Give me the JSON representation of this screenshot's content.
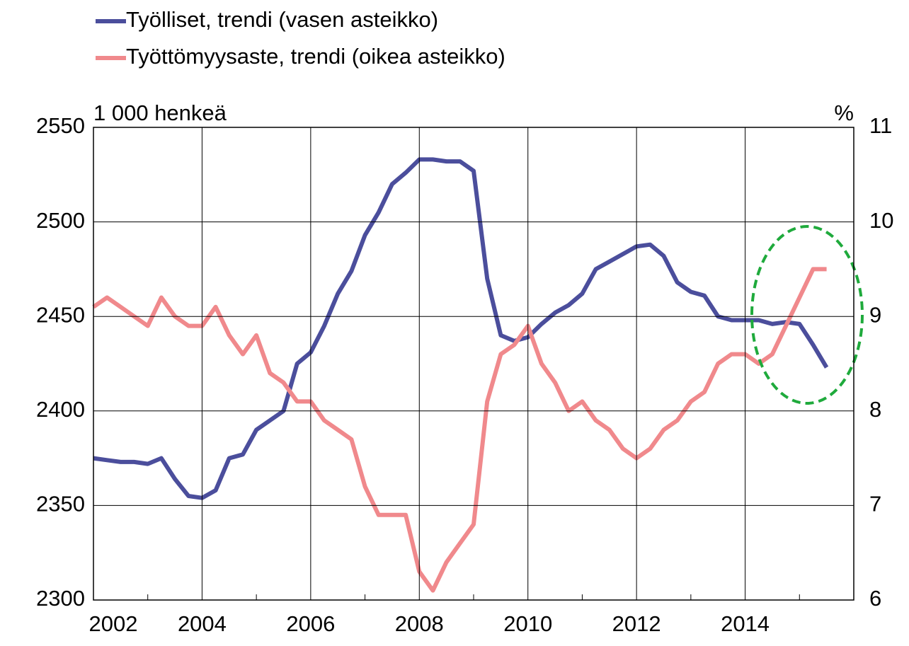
{
  "chart_data": {
    "type": "line",
    "x": [
      2002,
      2002.25,
      2002.5,
      2002.75,
      2003,
      2003.25,
      2003.5,
      2003.75,
      2004,
      2004.25,
      2004.5,
      2004.75,
      2005,
      2005.25,
      2005.5,
      2005.75,
      2006,
      2006.25,
      2006.5,
      2006.75,
      2007,
      2007.25,
      2007.5,
      2007.75,
      2008,
      2008.25,
      2008.5,
      2008.75,
      2009,
      2009.25,
      2009.5,
      2009.75,
      2010,
      2010.25,
      2010.5,
      2010.75,
      2011,
      2011.25,
      2011.5,
      2011.75,
      2012,
      2012.25,
      2012.5,
      2012.75,
      2013,
      2013.25,
      2013.5,
      2013.75,
      2014,
      2014.25,
      2014.5,
      2014.75,
      2015,
      2015.25,
      2015.5
    ],
    "series": [
      {
        "name": "Työlliset, trendi (vasen asteikko)",
        "color": "#4b4e9c",
        "axis": "y",
        "values": [
          2375,
          2374,
          2373,
          2373,
          2372,
          2375,
          2364,
          2355,
          2354,
          2358,
          2375,
          2377,
          2390,
          2395,
          2400,
          2425,
          2431,
          2445,
          2462,
          2474,
          2493,
          2505,
          2520,
          2526,
          2533,
          2533,
          2532,
          2532,
          2527,
          2470,
          2440,
          2437,
          2439,
          2446,
          2452,
          2456,
          2462,
          2475,
          2479,
          2483,
          2487,
          2488,
          2482,
          2468,
          2463,
          2461,
          2450,
          2448,
          2448,
          2448,
          2446,
          2447,
          2446,
          2435,
          2423
        ]
      },
      {
        "name": "Työttömyysaste, trendi (oikea asteikko)",
        "color": "#f0898c",
        "axis": "y2",
        "values": [
          9.1,
          9.2,
          9.1,
          9.0,
          8.9,
          9.2,
          9.0,
          8.9,
          8.9,
          9.1,
          8.8,
          8.6,
          8.8,
          8.4,
          8.3,
          8.1,
          8.1,
          7.9,
          7.8,
          7.7,
          7.2,
          6.9,
          6.9,
          6.9,
          6.3,
          6.1,
          6.4,
          6.6,
          6.8,
          8.1,
          8.6,
          8.7,
          8.9,
          8.5,
          8.3,
          8.0,
          8.1,
          7.9,
          7.8,
          7.6,
          7.5,
          7.6,
          7.8,
          7.9,
          8.1,
          8.2,
          8.5,
          8.6,
          8.6,
          8.5,
          8.6,
          8.9,
          9.2,
          9.5,
          9.5
        ]
      }
    ],
    "y_label": "1 000 henkeä",
    "y2_label": "%",
    "xlim": [
      2002,
      2016
    ],
    "xticks": [
      2002,
      2004,
      2006,
      2008,
      2010,
      2012,
      2014
    ],
    "xminorticks": [
      2003,
      2005,
      2007,
      2009,
      2011,
      2013,
      2015
    ],
    "ylim": [
      2300,
      2550
    ],
    "yticks": [
      2300,
      2350,
      2400,
      2450,
      2500,
      2550
    ],
    "y2lim": [
      6,
      11
    ],
    "y2ticks": [
      6,
      7,
      8,
      9,
      10,
      11
    ],
    "grid": true
  }
}
